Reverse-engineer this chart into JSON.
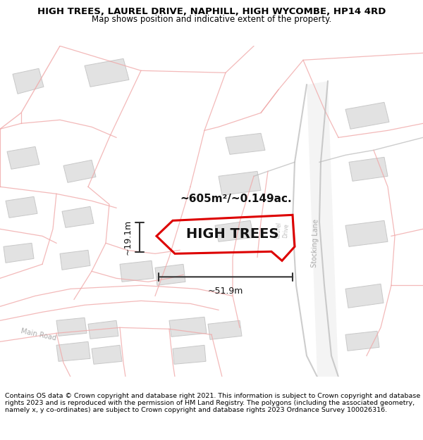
{
  "title_line1": "HIGH TREES, LAUREL DRIVE, NAPHILL, HIGH WYCOMBE, HP14 4RD",
  "title_line2": "Map shows position and indicative extent of the property.",
  "footer": "Contains OS data © Crown copyright and database right 2021. This information is subject to Crown copyright and database rights 2023 and is reproduced with the permission of HM Land Registry. The polygons (including the associated geometry, namely x, y co-ordinates) are subject to Crown copyright and database rights 2023 Ordnance Survey 100026316.",
  "property_label": "HIGH TREES",
  "area_label": "~605m²/~0.149ac.",
  "width_label": "~51.9m",
  "height_label": "~19.1m",
  "map_bg": "#f8f7f5",
  "plot_outline_color": "#dd0000",
  "road_label1": "Stocking Lane",
  "road_label2": "Main Road",
  "title_fontsize": 9.5,
  "subtitle_fontsize": 8.5,
  "footer_fontsize": 6.8,
  "building_fill": "#e2e2e2",
  "building_edge": "#c8c8c8",
  "pink_line_color": "#f0a8a8",
  "road_line_color": "#c8c8c8",
  "stocking_lane_color": "#d8d8d8"
}
